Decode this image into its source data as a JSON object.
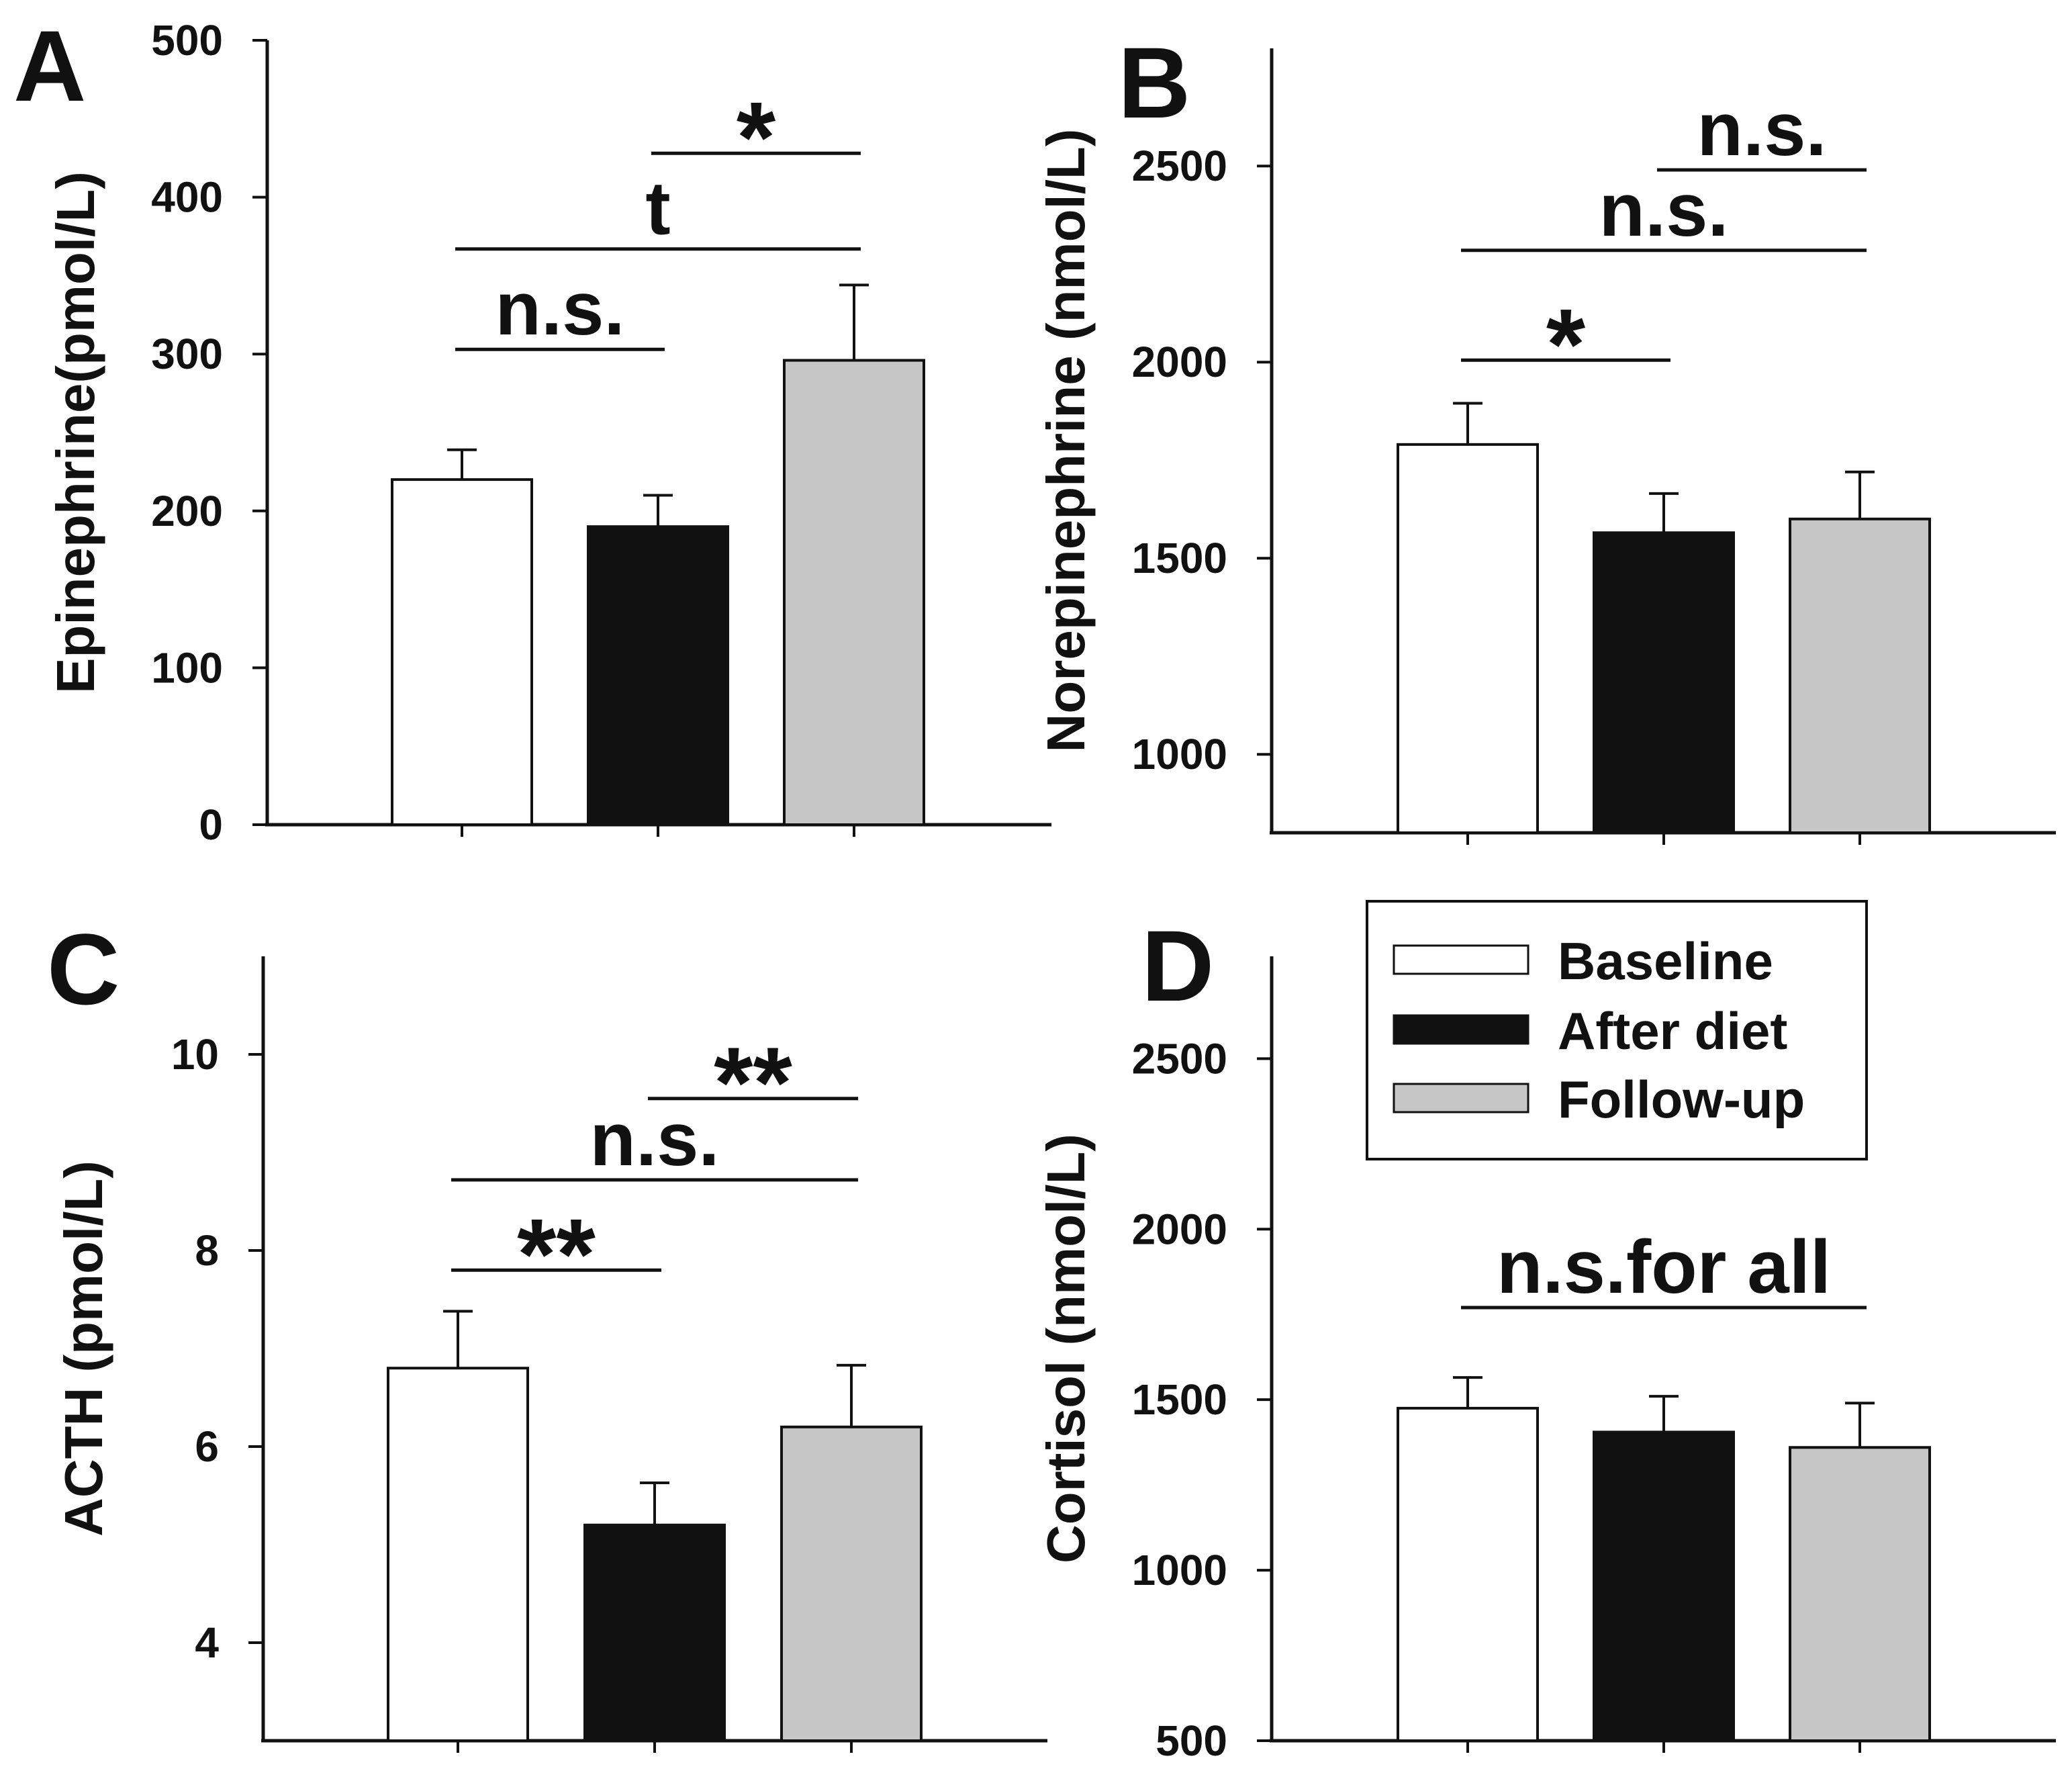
{
  "chart_data": [
    {
      "panel": "A",
      "type": "bar",
      "categories": [
        "Baseline",
        "After diet",
        "Follow-up"
      ],
      "values": [
        220,
        190,
        296
      ],
      "errors": [
        19,
        20,
        48
      ],
      "ylabel": "Epinephrine(pmol/L)",
      "ylim": [
        0,
        500
      ],
      "yticks": [
        0,
        100,
        200,
        300,
        400,
        500
      ],
      "significance": [
        {
          "from": 0,
          "to": 1,
          "label": "n.s.",
          "y": 303
        },
        {
          "from": 0,
          "to": 2,
          "label": "t",
          "y": 367
        },
        {
          "from": 1,
          "to": 2,
          "label": "*",
          "y": 428
        }
      ]
    },
    {
      "panel": "B",
      "type": "bar",
      "categories": [
        "Baseline",
        "After diet",
        "Follow-up"
      ],
      "values": [
        1790,
        1565,
        1600
      ],
      "errors": [
        105,
        100,
        120
      ],
      "ylabel": "Norepinephrine (nmol/L)",
      "ylim": [
        800,
        2800
      ],
      "yticks": [
        1000,
        1500,
        2000,
        2500
      ],
      "significance": [
        {
          "from": 0,
          "to": 1,
          "label": "*",
          "y": 2005
        },
        {
          "from": 0,
          "to": 2,
          "label": "n.s.",
          "y": 2285
        },
        {
          "from": 1,
          "to": 2,
          "label": "n.s.",
          "y": 2490
        }
      ]
    },
    {
      "panel": "C",
      "type": "bar",
      "categories": [
        "Baseline",
        "After diet",
        "Follow-up"
      ],
      "values": [
        6.8,
        5.2,
        6.2
      ],
      "errors": [
        0.58,
        0.43,
        0.63
      ],
      "ylabel": "ACTH (pmol/L)",
      "ylim": [
        3,
        11
      ],
      "yticks": [
        4,
        6,
        8,
        10
      ],
      "significance": [
        {
          "from": 0,
          "to": 1,
          "label": "**",
          "y": 7.8
        },
        {
          "from": 0,
          "to": 2,
          "label": "n.s.",
          "y": 8.72
        },
        {
          "from": 1,
          "to": 2,
          "label": "**",
          "y": 9.55
        }
      ]
    },
    {
      "panel": "D",
      "type": "bar",
      "categories": [
        "Baseline",
        "After diet",
        "Follow-up"
      ],
      "values": [
        1475,
        1405,
        1360
      ],
      "errors": [
        90,
        105,
        130
      ],
      "ylabel": "Cortisol (nmol/L)",
      "ylim": [
        500,
        2800
      ],
      "yticks": [
        500,
        1000,
        1500,
        2000,
        2500
      ],
      "significance": [
        {
          "from": 0,
          "to": 2,
          "label": "n.s.for all",
          "y": 1770
        }
      ]
    }
  ],
  "legend": {
    "items": [
      {
        "label": "Baseline",
        "color": "#ffffff"
      },
      {
        "label": "After diet",
        "color": "#111111"
      },
      {
        "label": "Follow-up",
        "color": "#c6c6c6"
      }
    ]
  }
}
